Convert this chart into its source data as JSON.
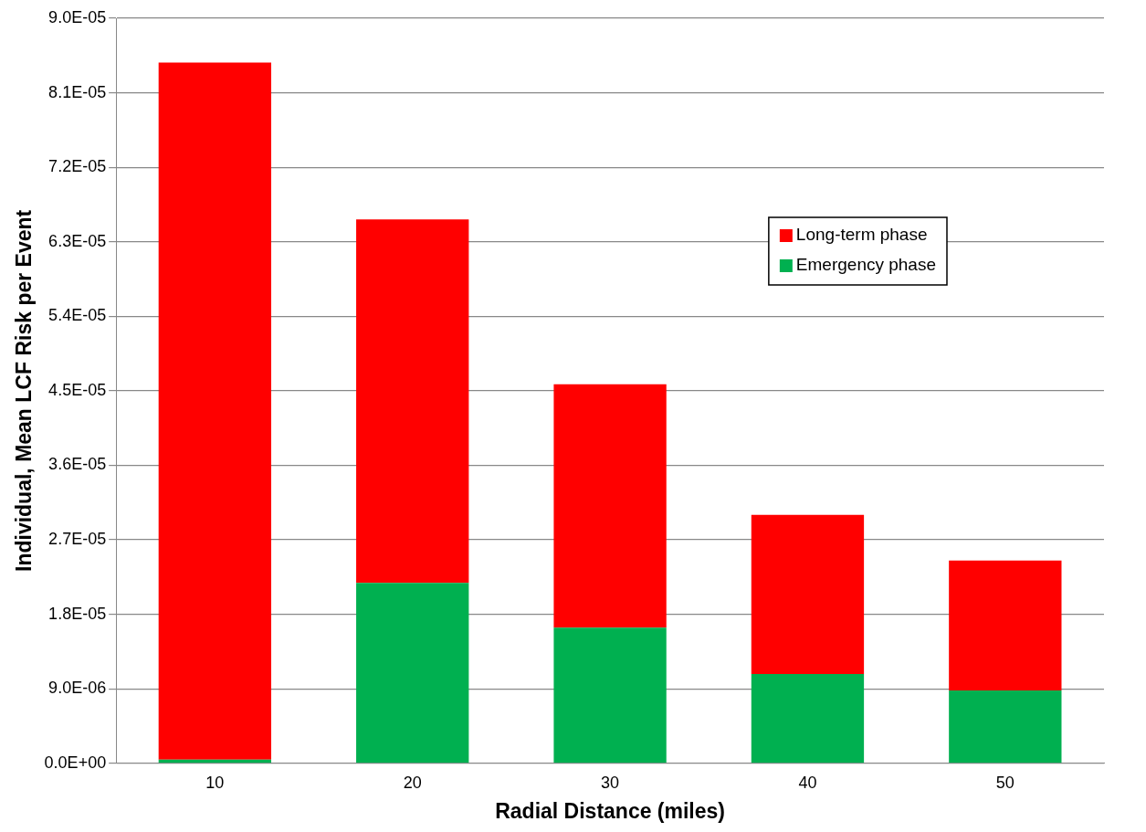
{
  "chart_data": {
    "type": "bar",
    "xlabel": "Radial Distance (miles)",
    "ylabel": "Individual, Mean LCF Risk per Event",
    "categories": [
      "10",
      "20",
      "30",
      "40",
      "50"
    ],
    "stacked": true,
    "series": [
      {
        "name": "Emergency phase",
        "color": "#00b050",
        "values": [
          4.5e-07,
          2.18e-05,
          1.64e-05,
          1.08e-05,
          8.8e-06
        ]
      },
      {
        "name": "Long-term phase",
        "color": "#ff0000",
        "values": [
          8.42e-05,
          4.39e-05,
          2.94e-05,
          1.92e-05,
          1.57e-05
        ]
      }
    ],
    "ylim": [
      0,
      9e-05
    ],
    "yticks": [
      {
        "value": 0,
        "label": "0.0E+00"
      },
      {
        "value": 9e-06,
        "label": "9.0E-06"
      },
      {
        "value": 1.8e-05,
        "label": "1.8E-05"
      },
      {
        "value": 2.7e-05,
        "label": "2.7E-05"
      },
      {
        "value": 3.6e-05,
        "label": "3.6E-05"
      },
      {
        "value": 4.5e-05,
        "label": "4.5E-05"
      },
      {
        "value": 5.4e-05,
        "label": "5.4E-05"
      },
      {
        "value": 6.3e-05,
        "label": "6.3E-05"
      },
      {
        "value": 7.2e-05,
        "label": "7.2E-05"
      },
      {
        "value": 8.1e-05,
        "label": "8.1E-05"
      },
      {
        "value": 9e-05,
        "label": "9.0E-05"
      }
    ],
    "grid": "y",
    "legend": "right"
  }
}
